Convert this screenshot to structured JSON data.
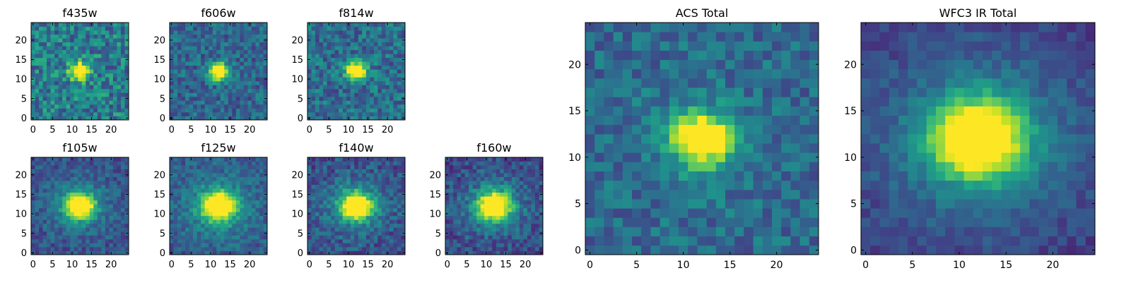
{
  "colormap": "viridis",
  "chart_data": [
    {
      "type": "heatmap",
      "title": "f435w",
      "xticks": [
        "0",
        "5",
        "10",
        "15",
        "20"
      ],
      "yticks": [
        "0",
        "5",
        "10",
        "15",
        "20"
      ],
      "xlim": [
        0,
        25
      ],
      "ylim": [
        0,
        25
      ],
      "peak": [
        12,
        12
      ],
      "sigma": 1.6,
      "bg": 0.42,
      "noise": 0.22,
      "amp": 1.0
    },
    {
      "type": "heatmap",
      "title": "f606w",
      "xticks": [
        "0",
        "5",
        "10",
        "15",
        "20"
      ],
      "yticks": [
        "0",
        "5",
        "10",
        "15",
        "20"
      ],
      "xlim": [
        0,
        25
      ],
      "ylim": [
        0,
        25
      ],
      "peak": [
        12,
        12
      ],
      "sigma": 1.6,
      "bg": 0.33,
      "noise": 0.16,
      "amp": 1.0
    },
    {
      "type": "heatmap",
      "title": "f814w",
      "xticks": [
        "0",
        "5",
        "10",
        "15",
        "20"
      ],
      "yticks": [
        "0",
        "5",
        "10",
        "15",
        "20"
      ],
      "xlim": [
        0,
        25
      ],
      "ylim": [
        0,
        25
      ],
      "peak": [
        12,
        12
      ],
      "sigma": 1.6,
      "bg": 0.36,
      "noise": 0.18,
      "amp": 1.0
    },
    {
      "type": "heatmap",
      "title": "f105w",
      "xticks": [
        "0",
        "5",
        "10",
        "15",
        "20"
      ],
      "yticks": [
        "0",
        "5",
        "10",
        "15",
        "20"
      ],
      "xlim": [
        0,
        25
      ],
      "ylim": [
        0,
        25
      ],
      "peak": [
        12,
        12
      ],
      "sigma": 2.2,
      "bg": 0.25,
      "noise": 0.12,
      "amp": 1.0,
      "halo": 0.25
    },
    {
      "type": "heatmap",
      "title": "f125w",
      "xticks": [
        "0",
        "5",
        "10",
        "15",
        "20"
      ],
      "yticks": [
        "0",
        "5",
        "10",
        "15",
        "20"
      ],
      "xlim": [
        0,
        25
      ],
      "ylim": [
        0,
        25
      ],
      "peak": [
        12,
        12
      ],
      "sigma": 2.4,
      "bg": 0.28,
      "noise": 0.12,
      "amp": 1.0,
      "halo": 0.3
    },
    {
      "type": "heatmap",
      "title": "f140w",
      "xticks": [
        "0",
        "5",
        "10",
        "15",
        "20"
      ],
      "yticks": [
        "0",
        "5",
        "10",
        "15",
        "20"
      ],
      "xlim": [
        0,
        25
      ],
      "ylim": [
        0,
        25
      ],
      "peak": [
        12,
        12
      ],
      "sigma": 2.3,
      "bg": 0.24,
      "noise": 0.14,
      "amp": 1.0,
      "halo": 0.28
    },
    {
      "type": "heatmap",
      "title": "f160w",
      "xticks": [
        "0",
        "5",
        "10",
        "15",
        "20"
      ],
      "yticks": [
        "0",
        "5",
        "10",
        "15",
        "20"
      ],
      "xlim": [
        0,
        25
      ],
      "ylim": [
        0,
        25
      ],
      "peak": [
        12,
        12
      ],
      "sigma": 2.4,
      "bg": 0.22,
      "noise": 0.14,
      "amp": 1.0,
      "halo": 0.3
    },
    {
      "type": "heatmap",
      "title": "ACS Total",
      "xticks": [
        "0",
        "5",
        "10",
        "15",
        "20"
      ],
      "yticks": [
        "0",
        "5",
        "10",
        "15",
        "20"
      ],
      "xlim": [
        0,
        25
      ],
      "ylim": [
        0,
        25
      ],
      "peak": [
        12,
        12
      ],
      "sigma": 1.8,
      "bg": 0.34,
      "noise": 0.14,
      "amp": 1.0,
      "halo": 0.15
    },
    {
      "type": "heatmap",
      "title": "WFC3 IR Total",
      "xticks": [
        "0",
        "5",
        "10",
        "15",
        "20"
      ],
      "yticks": [
        "0",
        "5",
        "10",
        "15",
        "20"
      ],
      "xlim": [
        0,
        25
      ],
      "ylim": [
        0,
        25
      ],
      "peak": [
        12,
        12
      ],
      "sigma": 2.8,
      "bg": 0.18,
      "noise": 0.08,
      "amp": 1.0,
      "halo": 0.35
    }
  ]
}
